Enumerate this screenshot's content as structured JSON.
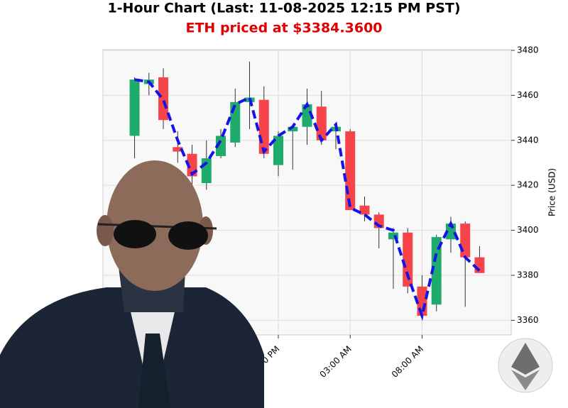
{
  "chart_data": {
    "type": "candlestick",
    "title": "1-Hour Chart (Last: 11-08-2025 12:15 PM PST)",
    "subtitle": "ETH priced at $3384.3600",
    "y_label": "Price (USD)",
    "categories": [
      null,
      null,
      null,
      null,
      null,
      null,
      null,
      null,
      null,
      null,
      null,
      null,
      null,
      null,
      null,
      null,
      null,
      null,
      null,
      null,
      null,
      null,
      null,
      null,
      null
    ],
    "open": [
      3442,
      3465,
      3468,
      3437,
      3434,
      3421,
      3433,
      3439,
      3457,
      3458,
      3429,
      3444,
      3446,
      3455,
      3444,
      3444,
      3411,
      3407,
      3396,
      3399,
      3375,
      3367,
      3396,
      3403,
      3388
    ],
    "high": [
      3468,
      3470,
      3472,
      3444,
      3438,
      3440,
      3445,
      3463,
      3475,
      3464,
      3444,
      3447,
      3463,
      3462,
      3447,
      3445,
      3415,
      3408,
      3401,
      3401,
      3380,
      3398,
      3406,
      3404,
      3393
    ],
    "low": [
      3432,
      3460,
      3445,
      3430,
      3418,
      3418,
      3432,
      3437,
      3445,
      3432,
      3424,
      3427,
      3438,
      3438,
      3436,
      3409,
      3404,
      3392,
      3374,
      3372,
      3361,
      3364,
      3390,
      3366,
      3381
    ],
    "close": [
      3467,
      3467,
      3449,
      3435,
      3424,
      3432,
      3442,
      3457,
      3459,
      3434,
      3442,
      3446,
      3456,
      3440,
      3446,
      3409,
      3407,
      3401,
      3399,
      3375,
      3362,
      3397,
      3403,
      3388,
      3381
    ],
    "up_color": "#1fab6b",
    "down_color": "#f5454a",
    "line": {
      "color": "#1414e6",
      "style": "dashed",
      "values": [
        3467,
        3466,
        3458,
        3440,
        3425,
        3430,
        3440,
        3456,
        3459,
        3435,
        3442,
        3446,
        3456,
        3440,
        3447,
        3410,
        3407,
        3402,
        3400,
        3380,
        3362,
        3390,
        3403,
        3388,
        3382
      ]
    },
    "xlim": [
      -2.2,
      26.2
    ],
    "xticks": [
      {
        "value": 10,
        "label": "10:00 PM"
      },
      {
        "value": 15,
        "label": "03:00 AM"
      },
      {
        "value": 20,
        "label": "08:00 AM"
      }
    ],
    "ylim": [
      3353.5,
      3480.3
    ],
    "yticks": [
      3360,
      3380,
      3400,
      3420,
      3440,
      3460,
      3480
    ],
    "y_axis_side": "right",
    "grid": true
  }
}
